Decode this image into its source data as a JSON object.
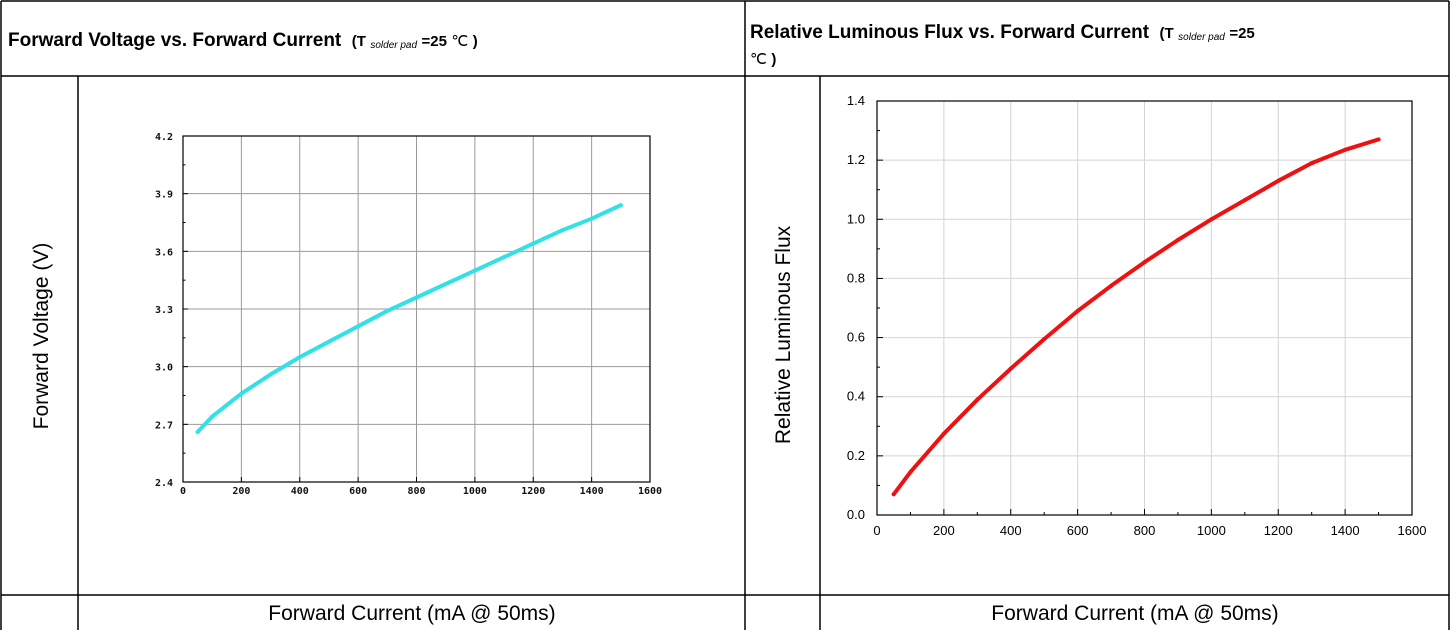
{
  "left_panel": {
    "title_main": "Forward Voltage vs. Forward Current",
    "title_cond_open": "(T",
    "title_cond_sub": "solder pad",
    "title_cond_value": "=25",
    "title_cond_unit": "℃",
    "title_cond_close": ")",
    "ylabel_caption": "Forward Voltage (V)",
    "xlabel_caption": "Forward Current (mA @ 50ms)"
  },
  "right_panel": {
    "title_main": "Relative Luminous Flux vs. Forward Current",
    "title_cond_open": "(T",
    "title_cond_sub": "solder pad",
    "title_cond_value": "=25",
    "title_cond_unit": "℃",
    "title_cond_close": ")",
    "ylabel_caption": "Relative Luminous Flux",
    "xlabel_caption": "Forward Current (mA @ 50ms)"
  },
  "chart_data": [
    {
      "type": "line",
      "xlim": [
        0,
        1600
      ],
      "ylim": [
        2.4,
        4.2
      ],
      "x_ticks": [
        0,
        200,
        400,
        600,
        800,
        1000,
        1200,
        1400,
        1600
      ],
      "x_tick_labels": [
        "0",
        "200",
        "400",
        "600",
        "800",
        "1000",
        "1200",
        "1400",
        "1600"
      ],
      "y_ticks": [
        2.4,
        2.7,
        3.0,
        3.3,
        3.6,
        3.9,
        4.2
      ],
      "y_tick_labels": [
        "2.4",
        "2.7",
        "3.0",
        "3.3",
        "3.6",
        "3.9",
        "4.2"
      ],
      "grid": true,
      "color": "#33e0e6",
      "series": [
        {
          "x": [
            50,
            100,
            150,
            200,
            300,
            400,
            500,
            600,
            700,
            800,
            900,
            1000,
            1100,
            1200,
            1300,
            1400,
            1500
          ],
          "y": [
            2.66,
            2.74,
            2.8,
            2.86,
            2.96,
            3.05,
            3.13,
            3.21,
            3.29,
            3.36,
            3.43,
            3.5,
            3.57,
            3.64,
            3.71,
            3.77,
            3.84
          ]
        }
      ]
    },
    {
      "type": "line",
      "xlim": [
        0,
        1600
      ],
      "ylim": [
        0.0,
        1.4
      ],
      "x_ticks": [
        0,
        200,
        400,
        600,
        800,
        1000,
        1200,
        1400,
        1600
      ],
      "x_tick_labels": [
        "0",
        "200",
        "400",
        "600",
        "800",
        "1000",
        "1200",
        "1400",
        "1600"
      ],
      "y_ticks": [
        0.0,
        0.2,
        0.4,
        0.6,
        0.8,
        1.0,
        1.2,
        1.4
      ],
      "y_tick_labels": [
        "0.0",
        "0.2",
        "0.4",
        "0.6",
        "0.8",
        "1.0",
        "1.2",
        "1.4"
      ],
      "grid": true,
      "color": "#ee1111",
      "series": [
        {
          "x": [
            50,
            100,
            200,
            300,
            400,
            500,
            600,
            700,
            800,
            900,
            1000,
            1100,
            1200,
            1300,
            1400,
            1500
          ],
          "y": [
            0.07,
            0.145,
            0.275,
            0.39,
            0.495,
            0.595,
            0.69,
            0.775,
            0.855,
            0.93,
            1.0,
            1.065,
            1.13,
            1.19,
            1.235,
            1.27
          ]
        }
      ]
    }
  ]
}
